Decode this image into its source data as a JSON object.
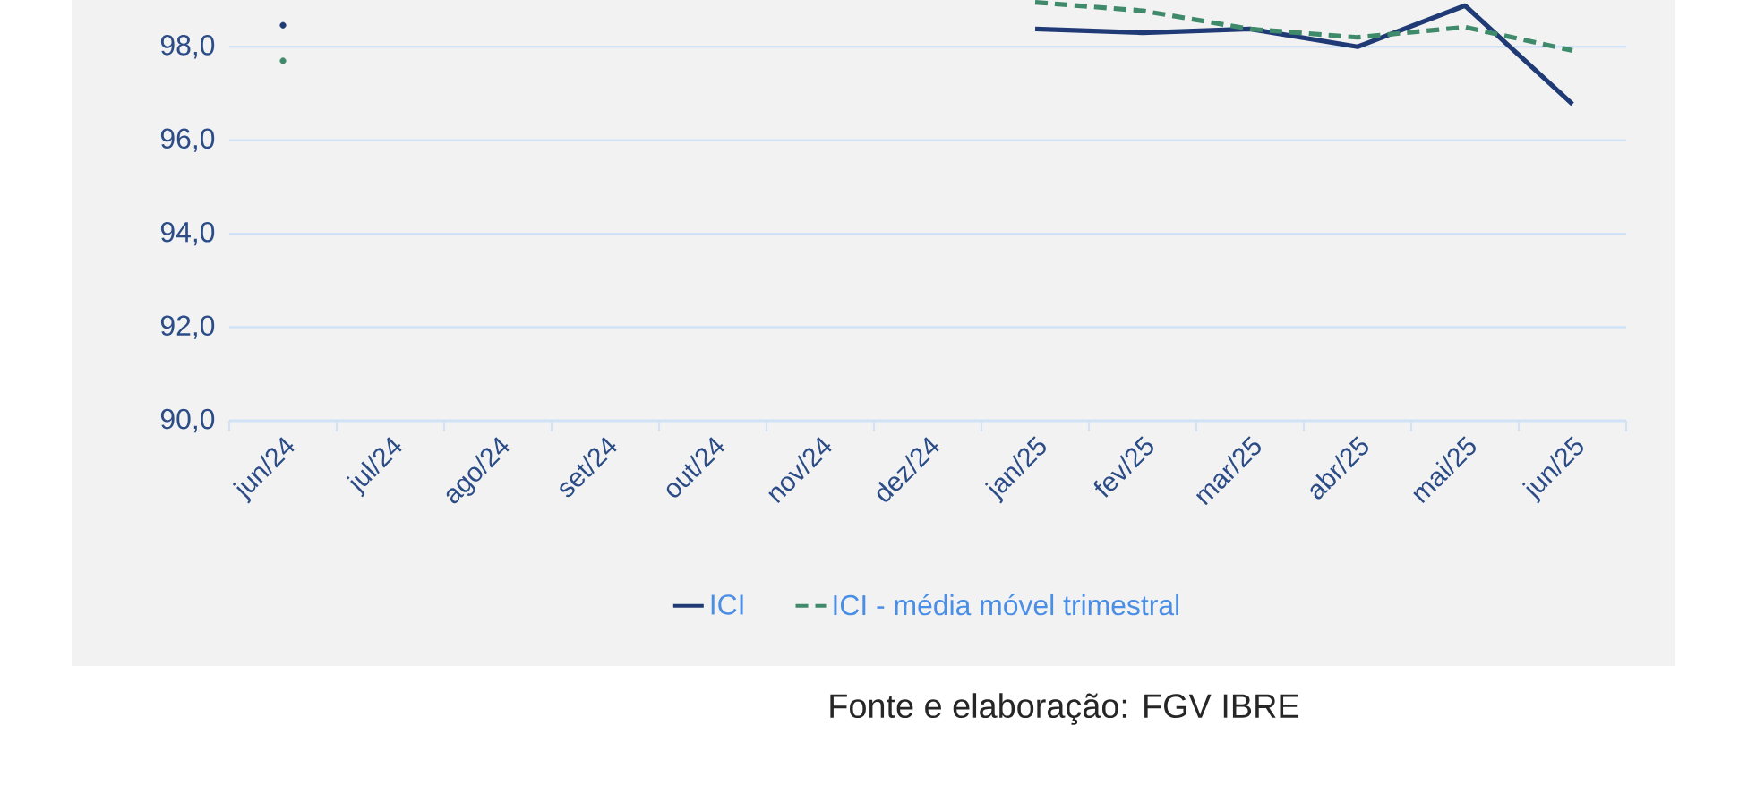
{
  "chart_data": {
    "type": "line",
    "categories": [
      "jun/24",
      "jul/24",
      "ago/24",
      "set/24",
      "out/24",
      "nov/24",
      "dez/24",
      "jan/25",
      "fev/25",
      "mar/25",
      "abr/25",
      "mai/25",
      "jun/25"
    ],
    "series": [
      {
        "name": "ICI",
        "color": "#1f3a75",
        "line_style": "solid",
        "values": [
          98.46,
          null,
          null,
          null,
          null,
          null,
          null,
          98.38,
          98.3,
          98.38,
          98.0,
          98.88,
          96.77
        ]
      },
      {
        "name": "ICI - média móvel trimestral",
        "color": "#3e8a6a",
        "line_style": "dashed",
        "values": [
          97.7,
          null,
          null,
          null,
          null,
          null,
          null,
          98.95,
          98.77,
          98.38,
          98.2,
          98.42,
          97.92
        ]
      }
    ],
    "ylim": [
      90,
      99
    ],
    "yticks": [
      {
        "value": 90,
        "label": "90,0"
      },
      {
        "value": 92,
        "label": "92,0"
      },
      {
        "value": 94,
        "label": "94,0"
      },
      {
        "value": 96,
        "label": "96,0"
      },
      {
        "value": 98,
        "label": "98,0"
      }
    ],
    "grid": "y",
    "legend": "bottom",
    "marker": "none",
    "annotations": [
      "Fonte e elaboração: FGV IBRE"
    ]
  }
}
